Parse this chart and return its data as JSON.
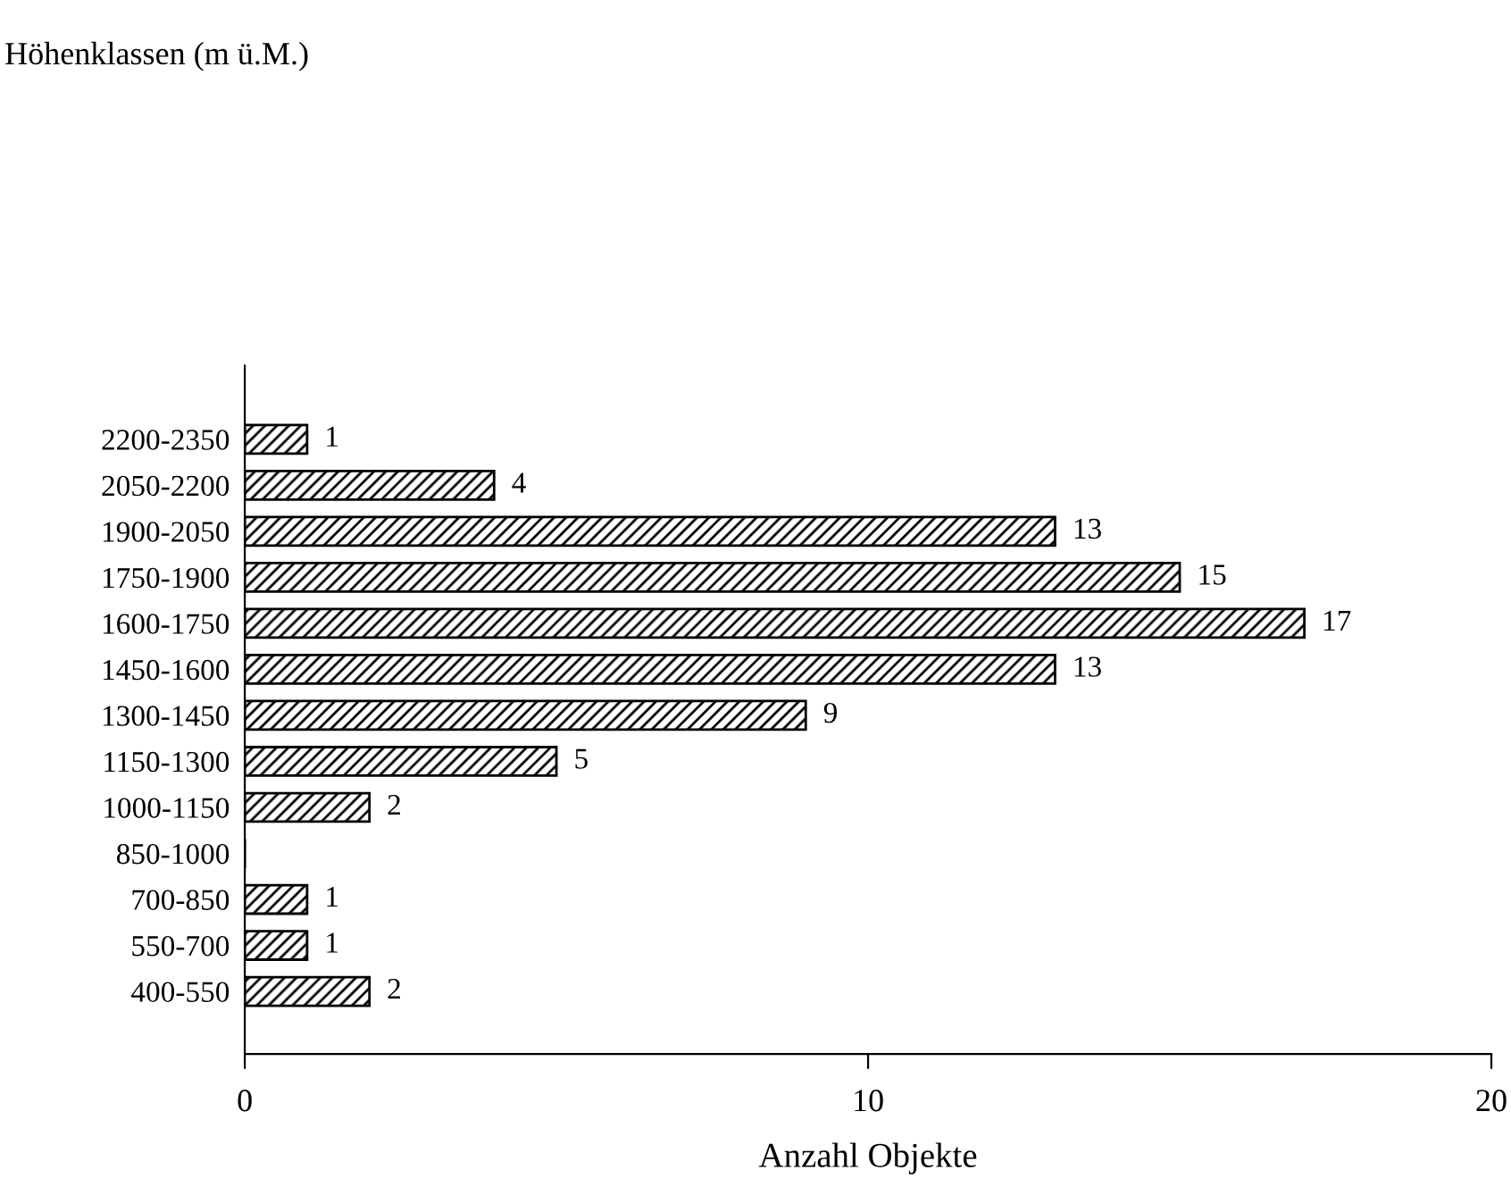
{
  "chart_data": {
    "type": "bar",
    "orientation": "horizontal",
    "title": "Höhenklassen (m ü.M.)",
    "xlabel": "Anzahl Objekte",
    "categories": [
      "2200-2350",
      "2050-2200",
      "1900-2050",
      "1750-1900",
      "1600-1750",
      "1450-1600",
      "1300-1450",
      "1150-1300",
      "1000-1150",
      "850-1000",
      "700-850",
      "550-700",
      "400-550"
    ],
    "values": [
      1,
      4,
      13,
      15,
      17,
      13,
      9,
      5,
      2,
      0,
      1,
      1,
      2
    ],
    "value_labels": [
      "1",
      "4",
      "13",
      "15",
      "17",
      "13",
      "9",
      "5",
      "2",
      null,
      "1",
      "1",
      "2"
    ],
    "color": "#000000",
    "xlim": [
      0,
      20
    ],
    "xticks": [
      0,
      10,
      20
    ],
    "grid": false,
    "legend": false
  }
}
